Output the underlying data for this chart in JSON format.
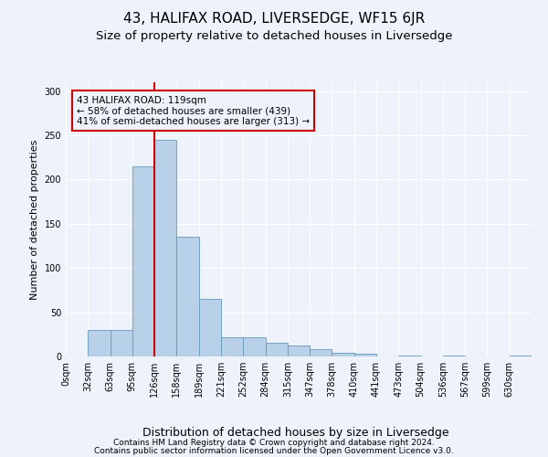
{
  "title1": "43, HALIFAX ROAD, LIVERSEDGE, WF15 6JR",
  "title2": "Size of property relative to detached houses in Liversedge",
  "xlabel": "Distribution of detached houses by size in Liversedge",
  "ylabel": "Number of detached properties",
  "bar_values": [
    0,
    30,
    30,
    215,
    245,
    135,
    65,
    22,
    22,
    15,
    12,
    8,
    4,
    3,
    0,
    1,
    0,
    1,
    0,
    0,
    1
  ],
  "bar_labels": [
    "0sqm",
    "32sqm",
    "63sqm",
    "95sqm",
    "126sqm",
    "158sqm",
    "189sqm",
    "221sqm",
    "252sqm",
    "284sqm",
    "315sqm",
    "347sqm",
    "378sqm",
    "410sqm",
    "441sqm",
    "473sqm",
    "504sqm",
    "536sqm",
    "567sqm",
    "599sqm",
    "630sqm"
  ],
  "bar_color": "#b8d0e8",
  "bar_edge_color": "#6699bb",
  "red_line_x": 4,
  "red_line_color": "#cc0000",
  "annotation_text": "43 HALIFAX ROAD: 119sqm\n← 58% of detached houses are smaller (439)\n41% of semi-detached houses are larger (313) →",
  "annotation_box_edge": "#cc0000",
  "ylim": [
    0,
    310
  ],
  "yticks": [
    0,
    50,
    100,
    150,
    200,
    250,
    300
  ],
  "footer1": "Contains HM Land Registry data © Crown copyright and database right 2024.",
  "footer2": "Contains public sector information licensed under the Open Government Licence v3.0.",
  "background_color": "#eef2fa",
  "grid_color": "#ffffff",
  "title1_fontsize": 11,
  "title2_fontsize": 9.5,
  "xlabel_fontsize": 9,
  "ylabel_fontsize": 8,
  "annotation_fontsize": 7.5,
  "tick_fontsize": 7,
  "footer_fontsize": 6.5
}
